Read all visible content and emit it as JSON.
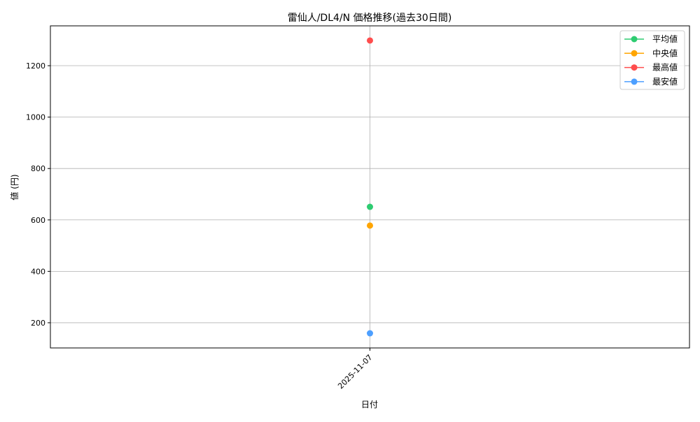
{
  "chart_data": {
    "type": "line",
    "title": "雷仙人/DL4/N 価格推移(過去30日間)",
    "xlabel": "日付",
    "ylabel": "値 (円)",
    "categories": [
      "2025-11-07"
    ],
    "ylim": [
      102,
      1355
    ],
    "yticks": [
      200,
      400,
      600,
      800,
      1000,
      1200
    ],
    "grid": true,
    "legend_position": "top-right",
    "series": [
      {
        "name": "平均値",
        "values": [
          651
        ],
        "color": "#2ecc71"
      },
      {
        "name": "中央値",
        "values": [
          578
        ],
        "color": "#ffa500"
      },
      {
        "name": "最高値",
        "values": [
          1298
        ],
        "color": "#ff4d4d"
      },
      {
        "name": "最安値",
        "values": [
          159
        ],
        "color": "#4d9fff"
      }
    ]
  }
}
